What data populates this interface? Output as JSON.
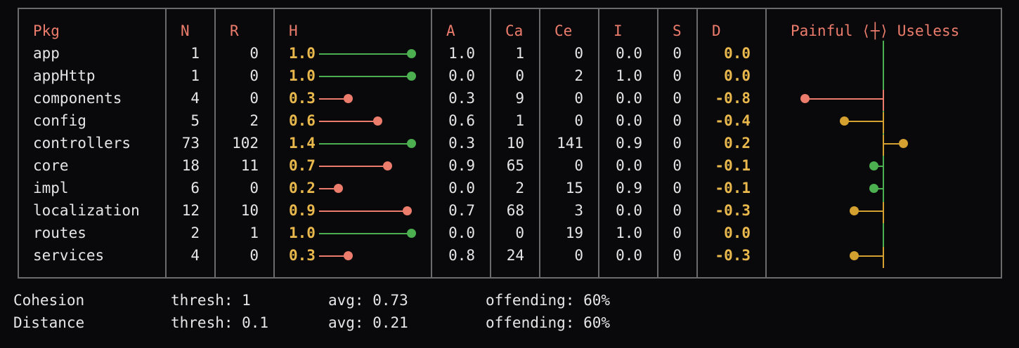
{
  "headers": {
    "pkg": "Pkg",
    "n": "N",
    "r": "R",
    "h": "H",
    "a": "A",
    "ca": "Ca",
    "ce": "Ce",
    "i": "I",
    "s": "S",
    "d": "D",
    "chart_label_left": "Painful",
    "chart_glyph": "⟨┼⟩",
    "chart_label_right": "Useless"
  },
  "colors": {
    "good": "#4caf50",
    "bad": "#ec7c6c",
    "warn": "#d4a030",
    "axis": "#4caf50",
    "text_hi": "#e9b84c"
  },
  "rows": [
    {
      "pkg": "app",
      "n": "1",
      "r": "0",
      "h": "1.0",
      "a": "1.0",
      "ca": "1",
      "ce": "0",
      "i": "0.0",
      "s": "0",
      "d": "0.0",
      "h_status": "good",
      "d_status": "good"
    },
    {
      "pkg": "appHttp",
      "n": "1",
      "r": "0",
      "h": "1.0",
      "a": "0.0",
      "ca": "0",
      "ce": "2",
      "i": "1.0",
      "s": "0",
      "d": "0.0",
      "h_status": "good",
      "d_status": "good"
    },
    {
      "pkg": "components",
      "n": "4",
      "r": "0",
      "h": "0.3",
      "a": "0.3",
      "ca": "9",
      "ce": "0",
      "i": "0.0",
      "s": "0",
      "d": "-0.8",
      "h_status": "bad",
      "d_status": "bad"
    },
    {
      "pkg": "config",
      "n": "5",
      "r": "2",
      "h": "0.6",
      "a": "0.6",
      "ca": "1",
      "ce": "0",
      "i": "0.0",
      "s": "0",
      "d": "-0.4",
      "h_status": "bad",
      "d_status": "warn"
    },
    {
      "pkg": "controllers",
      "n": "73",
      "r": "102",
      "h": "1.4",
      "a": "0.3",
      "ca": "10",
      "ce": "141",
      "i": "0.9",
      "s": "0",
      "d": "0.2",
      "h_status": "good",
      "d_status": "warn"
    },
    {
      "pkg": "core",
      "n": "18",
      "r": "11",
      "h": "0.7",
      "a": "0.9",
      "ca": "65",
      "ce": "0",
      "i": "0.0",
      "s": "0",
      "d": "-0.1",
      "h_status": "bad",
      "d_status": "good"
    },
    {
      "pkg": "impl",
      "n": "6",
      "r": "0",
      "h": "0.2",
      "a": "0.0",
      "ca": "2",
      "ce": "15",
      "i": "0.9",
      "s": "0",
      "d": "-0.1",
      "h_status": "bad",
      "d_status": "good"
    },
    {
      "pkg": "localization",
      "n": "12",
      "r": "10",
      "h": "0.9",
      "a": "0.7",
      "ca": "68",
      "ce": "3",
      "i": "0.0",
      "s": "0",
      "d": "-0.3",
      "h_status": "bad",
      "d_status": "warn"
    },
    {
      "pkg": "routes",
      "n": "2",
      "r": "1",
      "h": "1.0",
      "a": "0.0",
      "ca": "0",
      "ce": "19",
      "i": "1.0",
      "s": "0",
      "d": "0.0",
      "h_status": "good",
      "d_status": "good"
    },
    {
      "pkg": "services",
      "n": "4",
      "r": "0",
      "h": "0.3",
      "a": "0.8",
      "ca": "24",
      "ce": "0",
      "i": "0.0",
      "s": "0",
      "d": "-0.3",
      "h_status": "bad",
      "d_status": "warn"
    }
  ],
  "summary": [
    {
      "label": "Cohesion",
      "thresh": "thresh: 1",
      "avg": "avg: 0.73",
      "offending": "offending: 60%"
    },
    {
      "label": "Distance",
      "thresh": "thresh: 0.1",
      "avg": "avg: 0.21",
      "offending": "offending: 60%"
    }
  ]
}
